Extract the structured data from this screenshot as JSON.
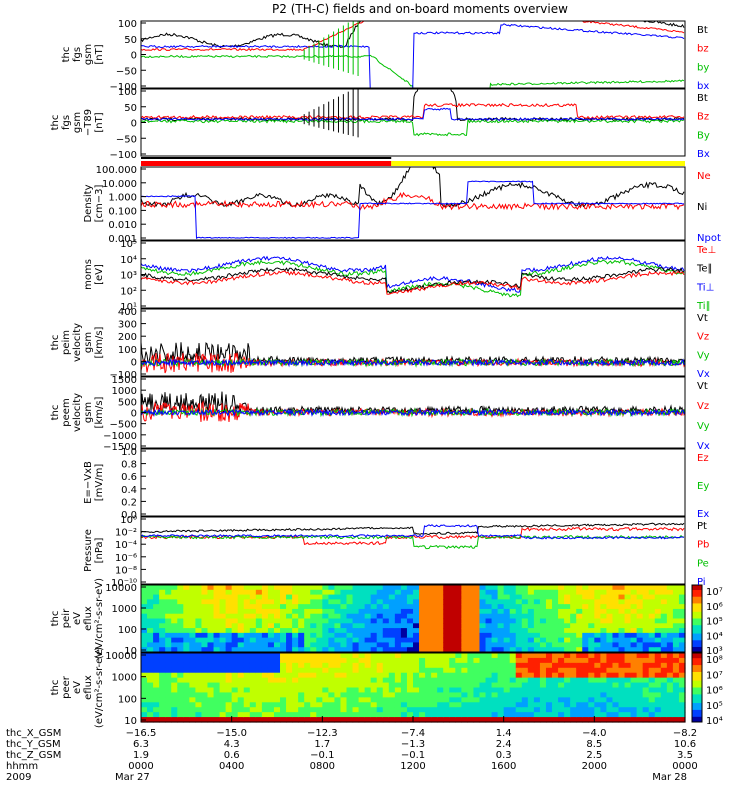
{
  "title": "P2 (TH-C) fields and on-board moments overview",
  "colors": {
    "black": "#000000",
    "red": "#ff0000",
    "green": "#00c000",
    "blue": "#0000ff",
    "yellow": "#ffff00"
  },
  "status_bar": {
    "segments": [
      {
        "from": 0,
        "to": 0.46,
        "color": "#ff0000"
      },
      {
        "from": 0.46,
        "to": 1.0,
        "color": "#ffff00"
      }
    ]
  },
  "panels": [
    {
      "id": "fgs",
      "ylabel": [
        "thc",
        "fgs",
        "gsm",
        "[nT]"
      ],
      "yticks": [
        "100",
        "50",
        "0",
        "−50",
        "−100"
      ],
      "legend": [
        {
          "text": "Bt",
          "color": "#000000"
        },
        {
          "text": "bz",
          "color": "#ff0000"
        },
        {
          "text": "by",
          "color": "#00c000"
        },
        {
          "text": "bx",
          "color": "#0000ff"
        }
      ]
    },
    {
      "id": "fgs_t89",
      "ylabel": [
        "thc",
        "fgs",
        "gsm",
        "−T89",
        "[nT]"
      ],
      "yticks": [
        "100",
        "50",
        "0",
        "−50",
        "−100"
      ],
      "legend": [
        {
          "text": "Bt",
          "color": "#000000"
        },
        {
          "text": "Bz",
          "color": "#ff0000"
        },
        {
          "text": "By",
          "color": "#00c000"
        },
        {
          "text": "Bx",
          "color": "#0000ff"
        }
      ]
    },
    {
      "id": "density",
      "ylabel": [
        "Density",
        "[cm−3]"
      ],
      "yticks": [
        "100.000",
        "10.000",
        "1.000",
        "0.100",
        "0.010",
        "0.001"
      ],
      "legend": [
        {
          "text": "Ne",
          "color": "#ff0000"
        },
        {
          "text": "Ni",
          "color": "#000000"
        },
        {
          "text": "Npot",
          "color": "#0000ff"
        }
      ]
    },
    {
      "id": "temperature",
      "ylabel": [
        "moms",
        "[eV]"
      ],
      "yticks": [
        "10⁵",
        "10⁴",
        "10³",
        "10²",
        "10¹"
      ],
      "legend": [
        {
          "text": "Te⊥",
          "color": "#ff0000"
        },
        {
          "text": "Te∥",
          "color": "#000000"
        },
        {
          "text": "Ti⊥",
          "color": "#0000ff"
        },
        {
          "text": "Ti∥",
          "color": "#00c000"
        }
      ]
    },
    {
      "id": "peim_vel",
      "ylabel": [
        "thc",
        "peim",
        "velocity",
        "gsm",
        "[km/s]"
      ],
      "yticks": [
        "400",
        "300",
        "200",
        "100",
        "0",
        "−100"
      ],
      "legend": [
        {
          "text": "Vt",
          "color": "#000000"
        },
        {
          "text": "Vz",
          "color": "#ff0000"
        },
        {
          "text": "Vy",
          "color": "#00c000"
        },
        {
          "text": "Vx",
          "color": "#0000ff"
        }
      ]
    },
    {
      "id": "peem_vel",
      "ylabel": [
        "thc",
        "peem",
        "velocity",
        "gsm",
        "[km/s]"
      ],
      "yticks": [
        "1500",
        "1000",
        "500",
        "0",
        "−500",
        "−1000",
        "−1500"
      ],
      "legend": [
        {
          "text": "Vt",
          "color": "#000000"
        },
        {
          "text": "Vz",
          "color": "#ff0000"
        },
        {
          "text": "Vy",
          "color": "#00c000"
        },
        {
          "text": "Vx",
          "color": "#0000ff"
        }
      ]
    },
    {
      "id": "efield",
      "ylabel": [
        "E=−VxB",
        "[mV/m]"
      ],
      "yticks": [
        "1.0",
        "0.8",
        "0.6",
        "0.4",
        "0.2",
        "0.0"
      ],
      "legend": [
        {
          "text": "Ez",
          "color": "#ff0000"
        },
        {
          "text": "Ey",
          "color": "#00c000"
        },
        {
          "text": "Ex",
          "color": "#0000ff"
        }
      ]
    },
    {
      "id": "pressure",
      "ylabel": [
        "Pressure",
        "[nPa]"
      ],
      "yticks": [
        "10⁰",
        "10⁻²",
        "10⁻⁴",
        "10⁻⁶",
        "10⁻⁸",
        "10⁻¹⁰"
      ],
      "legend": [
        {
          "text": "Pt",
          "color": "#000000"
        },
        {
          "text": "Pb",
          "color": "#ff0000"
        },
        {
          "text": "Pe",
          "color": "#00c000"
        },
        {
          "text": "Pi",
          "color": "#0000ff"
        }
      ]
    },
    {
      "id": "peir_spec",
      "ylabel": [
        "thc",
        "peir",
        "eV",
        "eflux",
        "(eV/cm²-s-sr-eV)"
      ],
      "yticks": [
        "10000",
        "1000",
        "100",
        "10"
      ],
      "colorbar": [
        "10⁷",
        "10⁶",
        "10⁵",
        "10⁴",
        "10³"
      ]
    },
    {
      "id": "peer_spec",
      "ylabel": [
        "thc",
        "peer",
        "eV",
        "eflux",
        "(eV/cm²-s-sr-eV)"
      ],
      "yticks": [
        "10000",
        "1000",
        "100",
        "10"
      ],
      "colorbar": [
        "10⁸",
        "10⁷",
        "10⁶",
        "10⁵",
        "10⁴"
      ]
    }
  ],
  "xaxis": {
    "rows": [
      {
        "label": "thc_X_GSM",
        "values": [
          "−16.5",
          "−15.0",
          "−12.3",
          "−7.4",
          "1.4",
          "−4.0",
          "−8.2"
        ]
      },
      {
        "label": "thc_Y_GSM",
        "values": [
          "6.3",
          "4.3",
          "1.7",
          "−1.3",
          "2.4",
          "8.5",
          "10.6"
        ]
      },
      {
        "label": "thc_Z_GSM",
        "values": [
          "1.9",
          "0.6",
          "−0.1",
          "−0.1",
          "0.3",
          "2.5",
          "3.5"
        ]
      },
      {
        "label": "hhmm",
        "values": [
          "0000",
          "0400",
          "0800",
          "1200",
          "1600",
          "2000",
          "0000"
        ]
      },
      {
        "label": "2009",
        "values": [
          "Mar 27",
          "",
          "",
          "",
          "",
          "",
          "Mar 28"
        ]
      }
    ]
  },
  "chart_data": {
    "type": "line",
    "title": "P2 (TH-C) fields and on-board moments overview",
    "x": [
      "0000",
      "0400",
      "0800",
      "1200",
      "1600",
      "2000",
      "0000"
    ],
    "xlabel": "hhmm",
    "date_labels": [
      "Mar 27",
      "Mar 28"
    ],
    "series": [
      {
        "name": "Bt",
        "panel": "fgs",
        "values": [
          20,
          18,
          12,
          40,
          100,
          60,
          30
        ]
      },
      {
        "name": "bz",
        "panel": "fgs",
        "values": [
          15,
          12,
          8,
          30,
          80,
          50,
          25
        ]
      },
      {
        "name": "by",
        "panel": "fgs",
        "values": [
          5,
          3,
          2,
          -20,
          -80,
          -50,
          -35
        ]
      },
      {
        "name": "bx",
        "panel": "fgs",
        "values": [
          12,
          10,
          5,
          -20,
          -100,
          30,
          20
        ]
      },
      {
        "name": "Ni",
        "panel": "density",
        "values": [
          0.3,
          0.5,
          0.4,
          1.0,
          0.2,
          0.3,
          0.5
        ]
      },
      {
        "name": "Ne",
        "panel": "density",
        "values": [
          0.3,
          0.5,
          0.4,
          0.6,
          0.15,
          0.3,
          0.4
        ]
      },
      {
        "name": "Pt",
        "panel": "pressure",
        "values": [
          0.05,
          0.06,
          0.08,
          0.1,
          0.01,
          0.3,
          0.1
        ]
      },
      {
        "name": "Pb",
        "panel": "pressure",
        "values": [
          0.02,
          0.03,
          0.05,
          0.05,
          0.003,
          0.2,
          0.08
        ]
      }
    ],
    "ylim": [
      -100,
      100
    ],
    "grid": false
  }
}
